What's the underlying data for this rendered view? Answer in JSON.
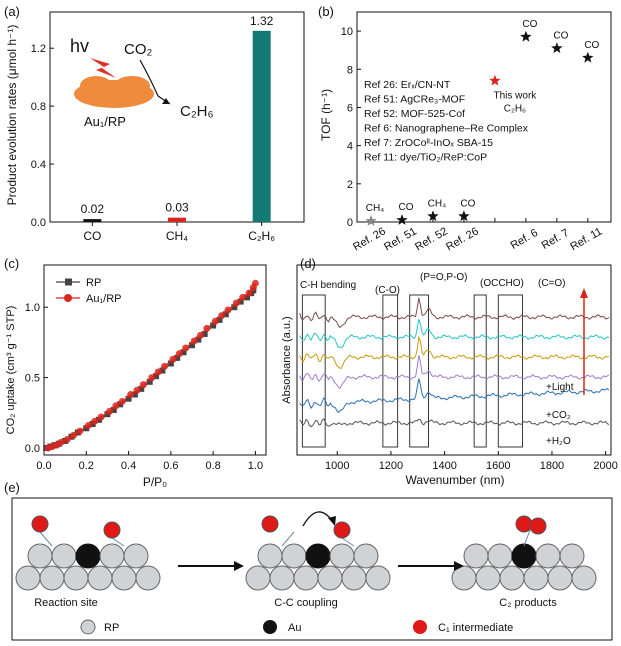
{
  "panels": {
    "a": {
      "label": "(a)"
    },
    "b": {
      "label": "(b)"
    },
    "c": {
      "label": "(c)"
    },
    "d": {
      "label": "(d)"
    },
    "e": {
      "label": "(e)"
    }
  },
  "chart_data": [
    {
      "panel": "a",
      "type": "bar",
      "ylabel": "Product evolution rates (μmol h⁻¹)",
      "categories": [
        "CO",
        "CH₄",
        "C₂H₆"
      ],
      "values": [
        0.02,
        0.03,
        1.32
      ],
      "data_labels": [
        "0.02",
        "0.03",
        "1.32"
      ],
      "colors": [
        "#111111",
        "#d9261c",
        "#127a73"
      ],
      "ylim": [
        0,
        1.45
      ],
      "yticks": [
        "0.0",
        "0.4",
        "0.8",
        "1.2"
      ],
      "inset": {
        "hv": "hv",
        "co2": "CO₂",
        "c2h6": "C₂H₆",
        "catalyst": "Au₁/RP"
      }
    },
    {
      "panel": "b",
      "type": "scatter",
      "ylabel": "TOF (h⁻¹)",
      "ylim": [
        0,
        11
      ],
      "yticks": [
        "0",
        "2",
        "4",
        "6",
        "8",
        "10"
      ],
      "categories": [
        "Ref. 26",
        "Ref. 51",
        "Ref. 52",
        "Ref. 26",
        "",
        "Ref. 6",
        "Ref. 7",
        "Ref. 11"
      ],
      "points": [
        {
          "x": 0,
          "y": 0.05,
          "label": "CH₄",
          "marker": "star",
          "color": "#888888"
        },
        {
          "x": 1,
          "y": 0.1,
          "label": "CO",
          "marker": "star",
          "color": "#111111"
        },
        {
          "x": 2,
          "y": 0.3,
          "label": "CH₄",
          "marker": "star",
          "color": "#111111"
        },
        {
          "x": 3,
          "y": 0.3,
          "label": "CO",
          "marker": "star",
          "color": "#111111"
        },
        {
          "x": 4,
          "y": 7.4,
          "label": "This work\nC₂H₆",
          "marker": "star",
          "color": "#d9261c"
        },
        {
          "x": 5,
          "y": 9.7,
          "label": "CO",
          "marker": "star",
          "color": "#111111"
        },
        {
          "x": 6,
          "y": 9.1,
          "label": "CO",
          "marker": "star",
          "color": "#111111"
        },
        {
          "x": 7,
          "y": 8.6,
          "label": "CO",
          "marker": "star",
          "color": "#111111"
        }
      ],
      "legend": [
        "Ref 26: Erₓ/CN-NT",
        "Ref 51: AgCRe₃-MOF",
        "Ref 52: MOF-525-Cof",
        "Ref 6: Nanographene–Re Complex",
        "Ref 7: ZrOCoᴵᴵ-InOₓ SBA-15",
        "Ref 11: dye/TiO₂/ReP:CoP"
      ]
    },
    {
      "panel": "c",
      "type": "line",
      "xlabel": "P/P₀",
      "ylabel": "CO₂ uptake (cm³ g⁻¹ STP)",
      "xlim": [
        0,
        1.05
      ],
      "ylim": [
        -0.05,
        1.3
      ],
      "xticks": [
        "0.0",
        "0.2",
        "0.4",
        "0.6",
        "0.8",
        "1.0"
      ],
      "yticks": [
        "0.0",
        "0.5",
        "1.0"
      ],
      "series": [
        {
          "name": "RP",
          "color": "#444444",
          "marker": "square",
          "x": [
            0.01,
            0.03,
            0.05,
            0.07,
            0.1,
            0.13,
            0.16,
            0.2,
            0.23,
            0.26,
            0.3,
            0.33,
            0.36,
            0.4,
            0.43,
            0.46,
            0.5,
            0.53,
            0.56,
            0.6,
            0.63,
            0.66,
            0.7,
            0.73,
            0.76,
            0.8,
            0.83,
            0.86,
            0.9,
            0.93,
            0.96,
            0.98,
            0.99
          ],
          "y": [
            0.0,
            0.01,
            0.02,
            0.03,
            0.05,
            0.08,
            0.11,
            0.14,
            0.17,
            0.2,
            0.24,
            0.27,
            0.31,
            0.35,
            0.38,
            0.42,
            0.47,
            0.51,
            0.55,
            0.6,
            0.64,
            0.68,
            0.73,
            0.77,
            0.81,
            0.87,
            0.91,
            0.95,
            1.0,
            1.04,
            1.07,
            1.1,
            1.12
          ]
        },
        {
          "name": "Au₁/RP",
          "color": "#d9261c",
          "marker": "circle",
          "x": [
            0.02,
            0.04,
            0.06,
            0.08,
            0.11,
            0.14,
            0.17,
            0.21,
            0.24,
            0.27,
            0.31,
            0.34,
            0.37,
            0.41,
            0.44,
            0.47,
            0.51,
            0.54,
            0.57,
            0.61,
            0.64,
            0.67,
            0.71,
            0.74,
            0.77,
            0.81,
            0.84,
            0.87,
            0.91,
            0.94,
            0.97,
            0.99,
            1.0
          ],
          "y": [
            0.0,
            0.01,
            0.02,
            0.04,
            0.06,
            0.09,
            0.12,
            0.16,
            0.19,
            0.22,
            0.26,
            0.3,
            0.33,
            0.38,
            0.41,
            0.45,
            0.5,
            0.54,
            0.58,
            0.63,
            0.67,
            0.71,
            0.76,
            0.8,
            0.85,
            0.9,
            0.94,
            0.98,
            1.03,
            1.07,
            1.1,
            1.14,
            1.17
          ]
        }
      ]
    },
    {
      "panel": "d",
      "type": "line",
      "xlabel": "Wavenumber (nm)",
      "ylabel": "Absorbance (a.u.)",
      "xlim": [
        850,
        2020
      ],
      "xticks": [
        "1000",
        "1200",
        "1400",
        "1600",
        "1800",
        "2000"
      ],
      "region_labels": [
        "C-H bending",
        "(C-O)",
        "(P=O,P-O)",
        "(OCCHO)",
        "(C=O)"
      ],
      "regions": [
        [
          870,
          955
        ],
        [
          1170,
          1225
        ],
        [
          1270,
          1340
        ],
        [
          1510,
          1555
        ],
        [
          1600,
          1690
        ]
      ],
      "curve_labels": [
        "+Light",
        "+CO₂",
        "+H₂O"
      ],
      "series_colors": [
        "#7a4a4a",
        "#25c6c6",
        "#c99b10",
        "#a27ad0",
        "#2a6fb8",
        "#555555"
      ],
      "series_offsets": [
        6.0,
        5.0,
        4.0,
        3.0,
        1.9,
        0.7
      ]
    }
  ],
  "scheme": {
    "labels": [
      "Reaction site",
      "C-C coupling",
      "C₂ products"
    ],
    "legend": [
      "RP",
      "Au",
      "C₁ intermediate"
    ]
  }
}
